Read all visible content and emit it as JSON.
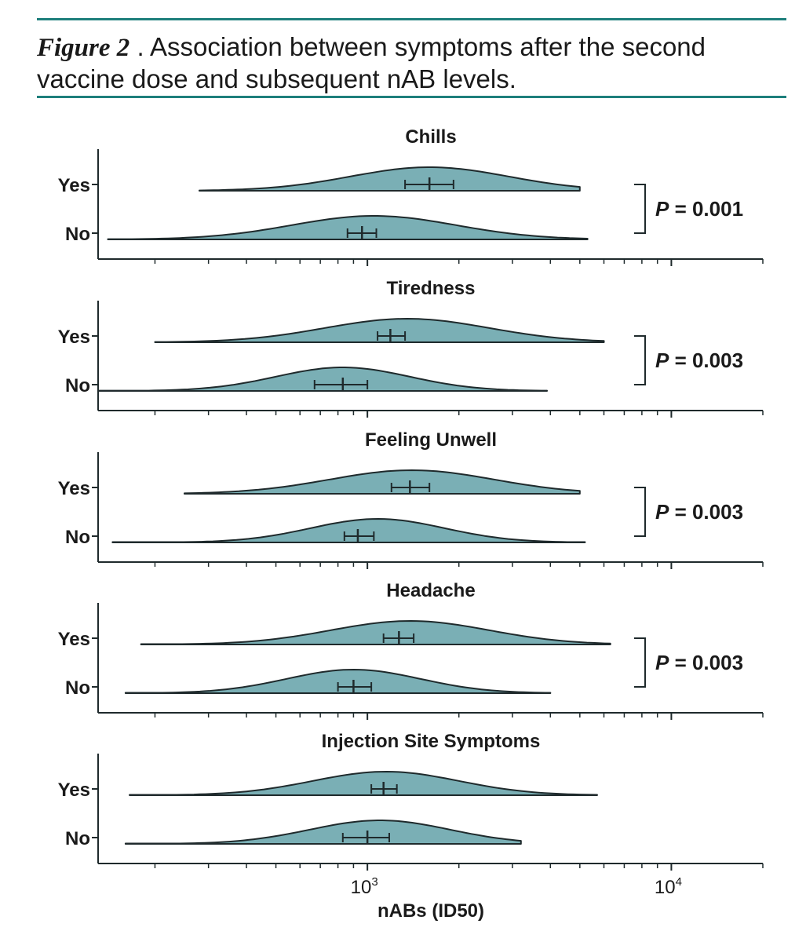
{
  "header": {
    "figure_label": "Figure 2",
    "caption": " . Association between symptoms after the second vaccine dose and subsequent nAB levels."
  },
  "colors": {
    "fill": "#7aafb5",
    "stroke": "#1f2a2c",
    "rule": "#1e7f7c"
  },
  "chart_data": {
    "type": "violin",
    "xlabel": "nABs (ID50)",
    "xscale": "log",
    "xlim": [
      130,
      20000
    ],
    "xtick_labels": [
      {
        "base": "10",
        "exp": "3",
        "value": 1000
      },
      {
        "base": "10",
        "exp": "4",
        "value": 10000
      }
    ],
    "panels": [
      {
        "title": "Chills",
        "p_value": "0.001",
        "groups": [
          {
            "label": "Yes",
            "median": 1600,
            "ci": [
              1330,
              1920
            ],
            "range": [
              280,
              5000
            ],
            "peak": 1600,
            "spread": 0.26
          },
          {
            "label": "No",
            "median": 960,
            "ci": [
              860,
              1070
            ],
            "range": [
              140,
              5300
            ],
            "peak": 1050,
            "spread": 0.27
          }
        ]
      },
      {
        "title": "Tiredness",
        "p_value": "0.003",
        "groups": [
          {
            "label": "Yes",
            "median": 1190,
            "ci": [
              1080,
              1330
            ],
            "range": [
              200,
              6000
            ],
            "peak": 1350,
            "spread": 0.27
          },
          {
            "label": "No",
            "median": 830,
            "ci": [
              670,
              1000
            ],
            "range": [
              130,
              3900
            ],
            "peak": 830,
            "spread": 0.22
          }
        ]
      },
      {
        "title": "Feeling Unwell",
        "p_value": "0.003",
        "groups": [
          {
            "label": "Yes",
            "median": 1380,
            "ci": [
              1200,
              1600
            ],
            "range": [
              250,
              5000
            ],
            "peak": 1400,
            "spread": 0.27
          },
          {
            "label": "No",
            "median": 930,
            "ci": [
              840,
              1050
            ],
            "range": [
              145,
              5200
            ],
            "peak": 1080,
            "spread": 0.22
          }
        ]
      },
      {
        "title": "Headache",
        "p_value": "0.003",
        "groups": [
          {
            "label": "Yes",
            "median": 1270,
            "ci": [
              1130,
              1420
            ],
            "range": [
              180,
              6300
            ],
            "peak": 1380,
            "spread": 0.26
          },
          {
            "label": "No",
            "median": 900,
            "ci": [
              800,
              1030
            ],
            "range": [
              160,
              4000
            ],
            "peak": 900,
            "spread": 0.22
          }
        ]
      },
      {
        "title": "Injection Site Symptoms",
        "p_value": "",
        "groups": [
          {
            "label": "Yes",
            "median": 1130,
            "ci": [
              1030,
              1250
            ],
            "range": [
              165,
              5700
            ],
            "peak": 1150,
            "spread": 0.24
          },
          {
            "label": "No",
            "median": 1000,
            "ci": [
              830,
              1180
            ],
            "range": [
              160,
              3200
            ],
            "peak": 1100,
            "spread": 0.23
          }
        ]
      }
    ]
  }
}
